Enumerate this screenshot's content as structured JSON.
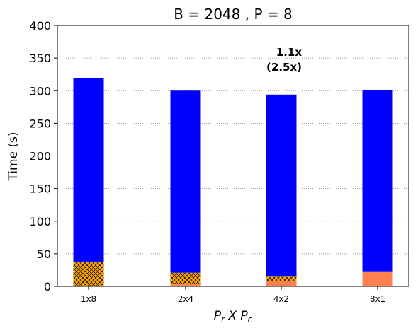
{
  "chart_data": {
    "type": "bar",
    "title": "B = 2048 ,  P = 8",
    "xlabel": {
      "base1": "P",
      "sub1": "r",
      "mid": " X ",
      "base2": "P",
      "sub2": "c"
    },
    "ylabel": "Time (s)",
    "ylim": [
      0,
      400
    ],
    "yticks": [
      0,
      50,
      100,
      150,
      200,
      250,
      300,
      350,
      400
    ],
    "grid": "y-dotted",
    "categories": [
      "1x8",
      "2x4",
      "4x2",
      "8x1"
    ],
    "series": [
      {
        "color": "#ff7f50",
        "hatch": "none",
        "values": [
          0,
          3,
          8,
          22
        ]
      },
      {
        "color": "#ffa500",
        "hatch": "cross",
        "values": [
          38,
          18,
          7,
          0
        ]
      },
      {
        "color": "#0000ff",
        "hatch": "none",
        "values": [
          281,
          279,
          279,
          279
        ]
      }
    ],
    "totals": [
      319,
      300,
      294,
      301
    ],
    "annotations": [
      {
        "category": "4x2",
        "line1": "1.1x",
        "line2": "(2.5x)"
      }
    ]
  },
  "colors": {
    "axis": "#000000",
    "grid": "#808080"
  }
}
